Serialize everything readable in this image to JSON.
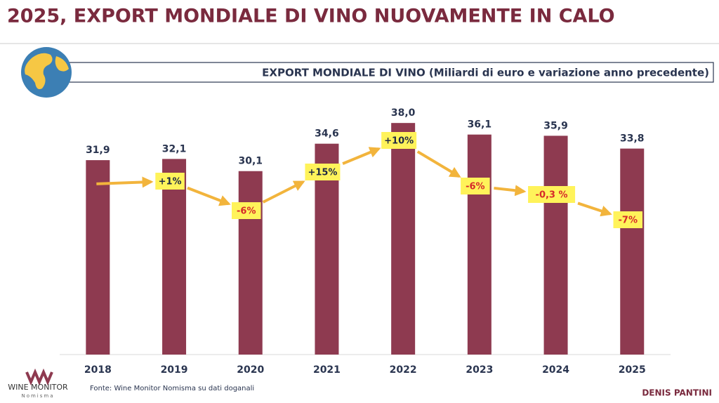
{
  "title": "2025, EXPORT MONDIALE DI VINO NUOVAMENTE IN CALO",
  "logo": {
    "brand": "WINE MONITOR",
    "sub": "Nomisma"
  },
  "source": "Fonte: Wine Monitor Nomisma su dati doganali",
  "author": "DENIS PANTINI",
  "chart_data": {
    "type": "bar",
    "title": "EXPORT MONDIALE DI VINO (Miliardi di euro e variazione anno precedente)",
    "categories": [
      "2018",
      "2019",
      "2020",
      "2021",
      "2022",
      "2023",
      "2024",
      "2025"
    ],
    "series": [
      {
        "color": "#8e3a50",
        "values": [
          31.9,
          32.1,
          30.1,
          34.6,
          38.0,
          36.1,
          35.9,
          33.8
        ],
        "value_labels": [
          "31,9",
          "32,1",
          "30,1",
          "34,6",
          "38,0",
          "36,1",
          "35,9",
          "33,8"
        ]
      },
      {
        "color": "#fff35a",
        "values": [
          null,
          1,
          -6,
          15,
          10,
          -6,
          -0.3,
          -7
        ],
        "value_labels": [
          null,
          "+1%",
          "-6%",
          "+15%",
          "+10%",
          "-6%",
          "-0,3 %",
          "-7%"
        ]
      }
    ]
  }
}
